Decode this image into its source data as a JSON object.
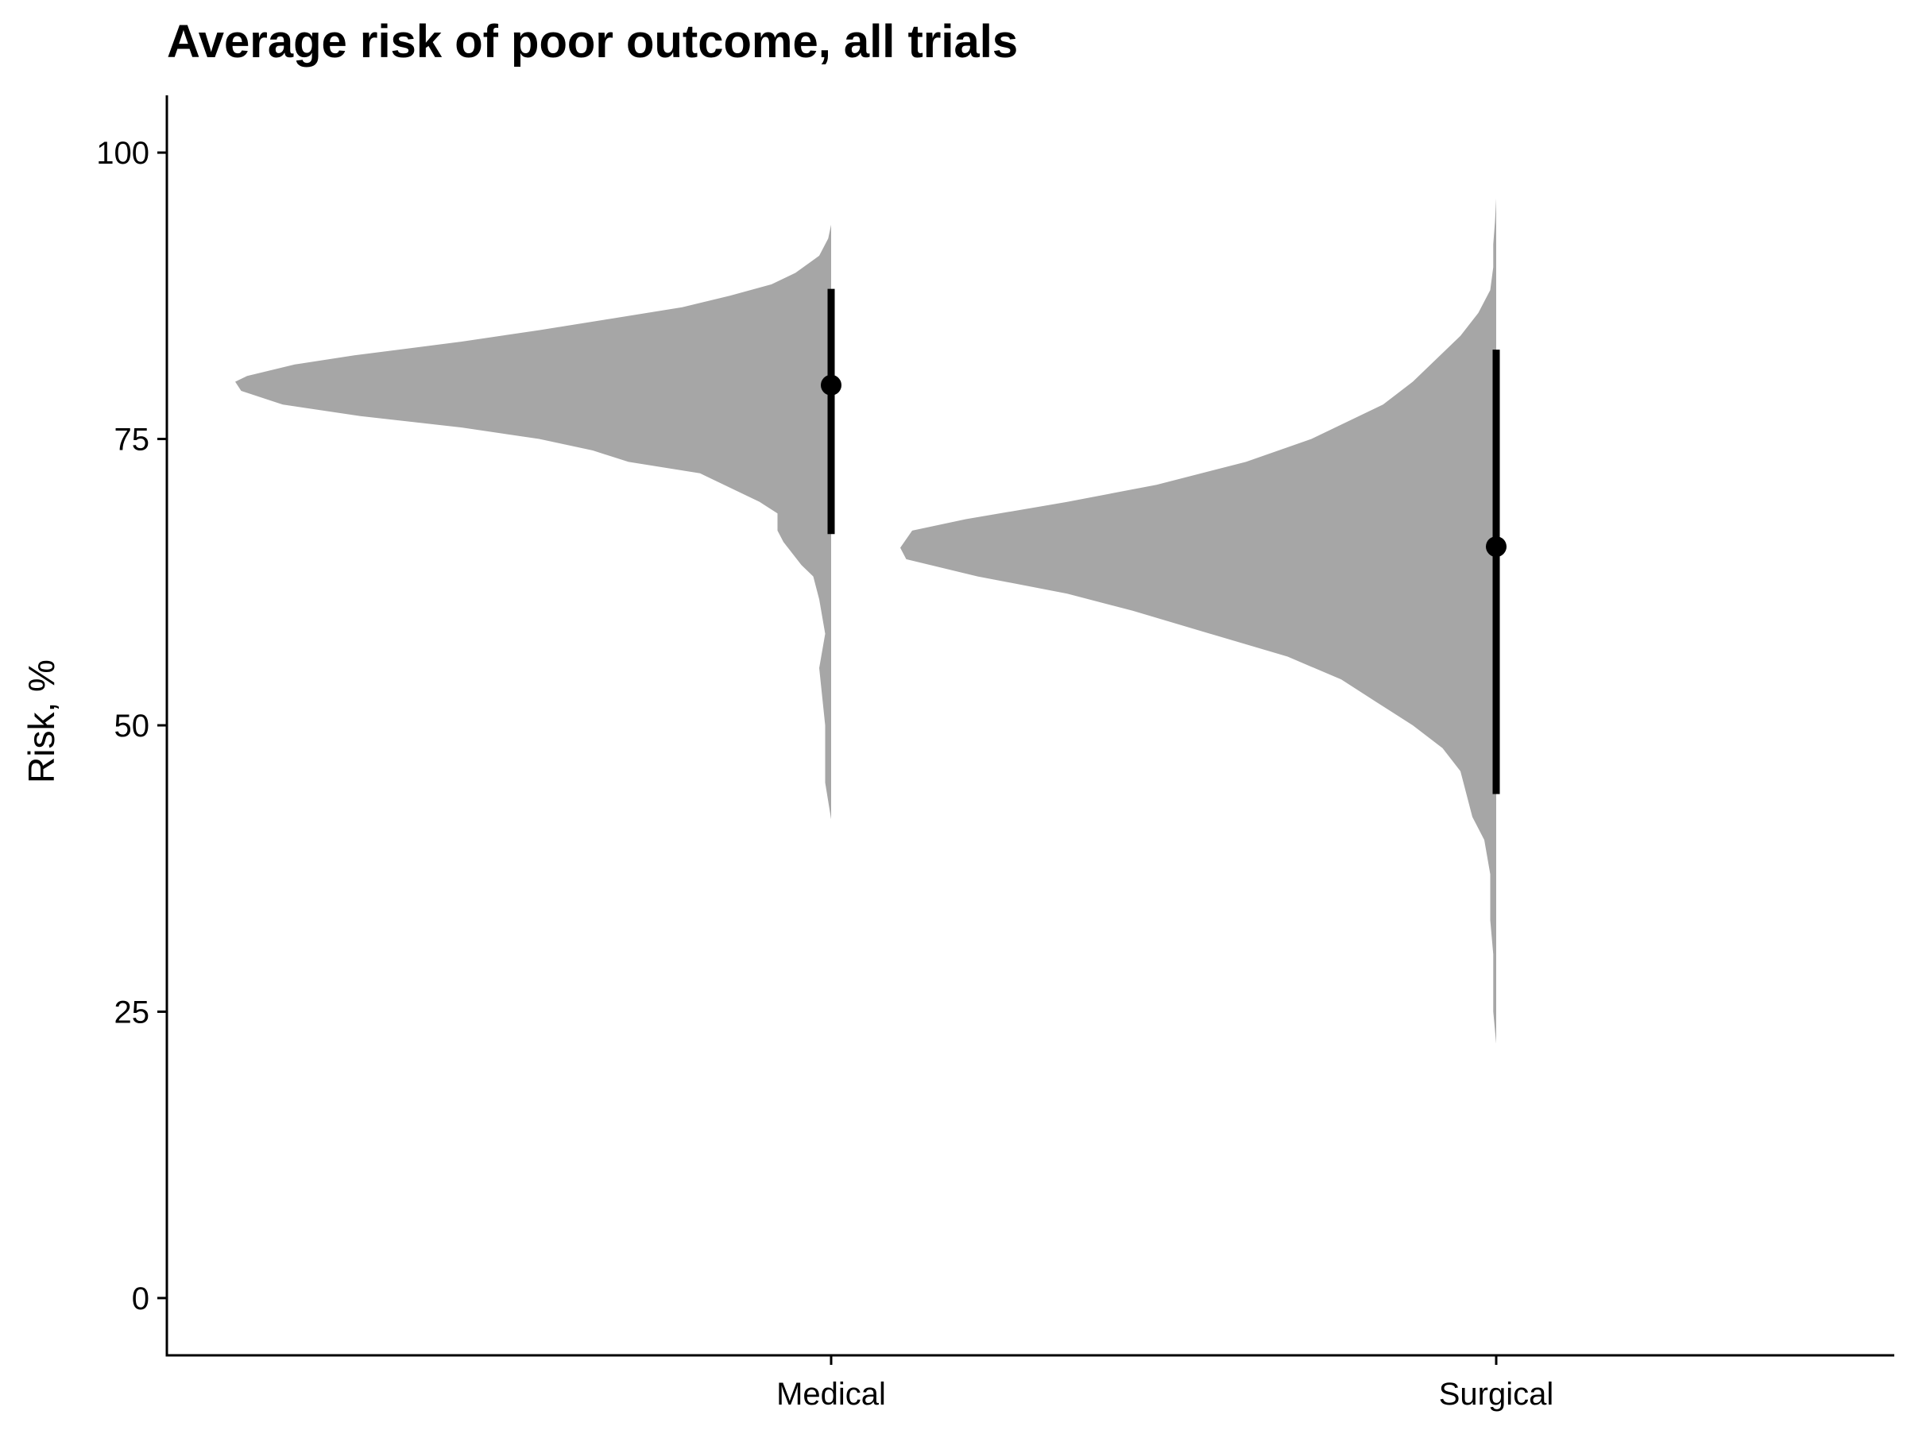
{
  "chart_data": {
    "type": "half-violin",
    "title": "Average risk of poor outcome, all trials",
    "xlabel": "",
    "ylabel": "Risk, %",
    "ylim": [
      -5,
      105
    ],
    "y_ticks": [
      0,
      25,
      50,
      75,
      100
    ],
    "categories": [
      "Medical",
      "Surgical"
    ],
    "grid": false,
    "legend": "none",
    "colors": {
      "density_fill": "#a6a6a6",
      "point": "#000000",
      "axis": "#000000"
    },
    "series": [
      {
        "category": "Medical",
        "point": 79.7,
        "interval": [
          66.7,
          88.1
        ],
        "density": [
          [
            41.8,
            0.0
          ],
          [
            45.0,
            0.01
          ],
          [
            50.0,
            0.01
          ],
          [
            55.0,
            0.02
          ],
          [
            58.0,
            0.01
          ],
          [
            61.0,
            0.02
          ],
          [
            63.0,
            0.03
          ],
          [
            64.0,
            0.05
          ],
          [
            66.0,
            0.08
          ],
          [
            67.0,
            0.09
          ],
          [
            68.5,
            0.09
          ],
          [
            69.5,
            0.12
          ],
          [
            70.5,
            0.16
          ],
          [
            72.0,
            0.22
          ],
          [
            73.0,
            0.34
          ],
          [
            74.0,
            0.4
          ],
          [
            75.0,
            0.49
          ],
          [
            76.0,
            0.62
          ],
          [
            77.0,
            0.79
          ],
          [
            78.0,
            0.92
          ],
          [
            79.2,
            0.99
          ],
          [
            80.0,
            1.0
          ],
          [
            80.5,
            0.98
          ],
          [
            81.5,
            0.9
          ],
          [
            82.3,
            0.8
          ],
          [
            83.5,
            0.62
          ],
          [
            84.5,
            0.49
          ],
          [
            85.5,
            0.37
          ],
          [
            86.5,
            0.25
          ],
          [
            87.5,
            0.17
          ],
          [
            88.5,
            0.1
          ],
          [
            89.5,
            0.06
          ],
          [
            91.0,
            0.02
          ],
          [
            92.5,
            0.005
          ],
          [
            93.7,
            0.0
          ]
        ]
      },
      {
        "category": "Surgical",
        "point": 65.6,
        "interval": [
          44.0,
          82.8
        ],
        "density": [
          [
            22.2,
            0.0
          ],
          [
            25.0,
            0.005
          ],
          [
            30.0,
            0.005
          ],
          [
            33.0,
            0.01
          ],
          [
            37.0,
            0.01
          ],
          [
            40.0,
            0.02
          ],
          [
            42.0,
            0.04
          ],
          [
            44.0,
            0.05
          ],
          [
            46.0,
            0.06
          ],
          [
            48.0,
            0.09
          ],
          [
            50.0,
            0.14
          ],
          [
            52.0,
            0.2
          ],
          [
            54.0,
            0.26
          ],
          [
            56.0,
            0.35
          ],
          [
            58.0,
            0.48
          ],
          [
            60.0,
            0.61
          ],
          [
            61.5,
            0.72
          ],
          [
            63.0,
            0.87
          ],
          [
            64.5,
            0.99
          ],
          [
            65.5,
            1.0
          ],
          [
            67.0,
            0.98
          ],
          [
            68.0,
            0.89
          ],
          [
            69.5,
            0.72
          ],
          [
            71.0,
            0.57
          ],
          [
            73.0,
            0.42
          ],
          [
            75.0,
            0.31
          ],
          [
            76.5,
            0.25
          ],
          [
            78.0,
            0.19
          ],
          [
            80.0,
            0.14
          ],
          [
            82.0,
            0.1
          ],
          [
            84.0,
            0.06
          ],
          [
            86.0,
            0.03
          ],
          [
            88.0,
            0.01
          ],
          [
            90.0,
            0.005
          ],
          [
            92.0,
            0.005
          ],
          [
            94.0,
            0.002
          ],
          [
            96.0,
            0.0
          ]
        ]
      }
    ]
  }
}
